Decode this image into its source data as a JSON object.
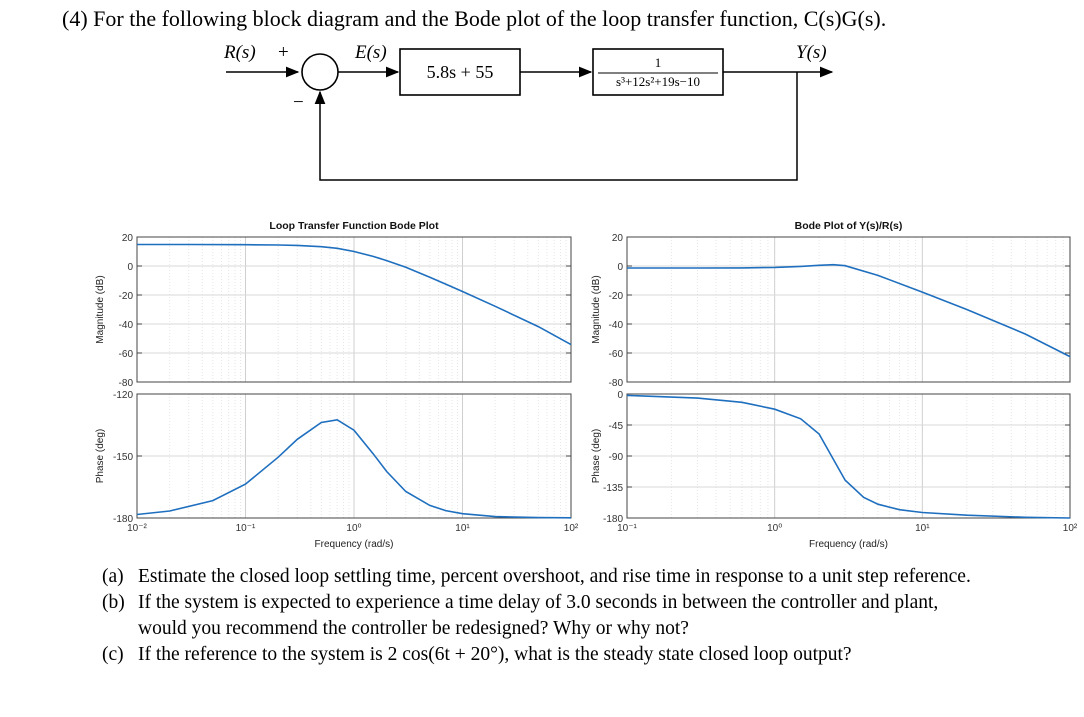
{
  "problem": {
    "title": "(4) For the following block diagram and the Bode plot of the loop transfer function, C(s)G(s)."
  },
  "block_diagram": {
    "input_label": "R(s)",
    "plus_sign": "+",
    "error_label": "E(s)",
    "minus_sign": "−",
    "output_label": "Y(s)",
    "controller": "5.8s + 55",
    "plant_numerator": "1",
    "plant_denominator": "s³+12s²+19s−10"
  },
  "chart_data": [
    {
      "type": "line",
      "title": "Loop Transfer Function Bode Plot",
      "panel": "magnitude",
      "xscale": "log",
      "xlim": [
        0.01,
        100
      ],
      "xticks": [
        "10⁻²",
        "10⁻¹",
        "10⁰",
        "10¹",
        "10²"
      ],
      "xlabel": "Frequency (rad/s)",
      "ylabel": "Magnitude (dB)",
      "ylim": [
        -80,
        20
      ],
      "yticks": [
        20,
        0,
        -20,
        -40,
        -60,
        -80
      ],
      "grid": true,
      "series": [
        {
          "name": "|C(jw)G(jw)|",
          "color": "#1f6fbf",
          "x": [
            0.01,
            0.03,
            0.1,
            0.2,
            0.3,
            0.5,
            0.7,
            1,
            1.5,
            2,
            3,
            5,
            7,
            10,
            20,
            50,
            100
          ],
          "y": [
            14.8,
            14.8,
            14.7,
            14.5,
            14.2,
            13.3,
            12.2,
            10.0,
            6.6,
            3.7,
            -0.9,
            -7.8,
            -12.5,
            -17.6,
            -27.8,
            -41.8,
            -54.2
          ]
        }
      ]
    },
    {
      "type": "line",
      "panel": "phase",
      "xscale": "log",
      "xlim": [
        0.01,
        100
      ],
      "ylabel": "Phase (deg)",
      "ylim": [
        -180,
        -120
      ],
      "yticks": [
        -120,
        -150,
        -180
      ],
      "grid": true,
      "series": [
        {
          "name": "phase C(jw)G(jw)",
          "color": "#1f6fbf",
          "x": [
            0.01,
            0.02,
            0.05,
            0.1,
            0.2,
            0.3,
            0.5,
            0.7,
            1,
            1.5,
            2,
            3,
            5,
            7,
            10,
            20,
            50,
            100
          ],
          "y": [
            -178.3,
            -176.6,
            -171.6,
            -163.6,
            -150.6,
            -141.9,
            -133.8,
            -132.5,
            -137.5,
            -148.9,
            -157.5,
            -167.2,
            -173.9,
            -176.4,
            -177.9,
            -179.3,
            -179.8,
            -179.9
          ]
        }
      ]
    },
    {
      "type": "line",
      "title": "Bode Plot of Y(s)/R(s)",
      "panel": "magnitude",
      "xscale": "log",
      "xlim": [
        0.1,
        100
      ],
      "xticks": [
        "10⁻¹",
        "10⁰",
        "10¹",
        "10²"
      ],
      "xlabel": "Frequency (rad/s)",
      "ylabel": "Magnitude (dB)",
      "ylim": [
        -80,
        20
      ],
      "yticks": [
        20,
        0,
        -20,
        -40,
        -60,
        -80
      ],
      "grid": true,
      "series": [
        {
          "name": "|Y/R|",
          "color": "#1f6fbf",
          "x": [
            0.1,
            0.3,
            0.6,
            1,
            1.5,
            2,
            2.5,
            3,
            5,
            10,
            20,
            50,
            100
          ],
          "y": [
            -1.4,
            -1.4,
            -1.3,
            -1.0,
            -0.3,
            0.5,
            0.9,
            0.2,
            -6.5,
            -18.0,
            -30.0,
            -47.0,
            -62.5
          ]
        }
      ]
    },
    {
      "type": "line",
      "panel": "phase",
      "xscale": "log",
      "xlim": [
        0.1,
        100
      ],
      "ylabel": "Phase (deg)",
      "ylim": [
        -180,
        0
      ],
      "yticks": [
        0,
        -45,
        -90,
        -135,
        -180
      ],
      "grid": true,
      "series": [
        {
          "name": "phase Y/R",
          "color": "#1f6fbf",
          "x": [
            0.1,
            0.3,
            0.6,
            1,
            1.5,
            2,
            2.5,
            3,
            4,
            5,
            7,
            10,
            20,
            50,
            100
          ],
          "y": [
            -2,
            -6,
            -12,
            -22,
            -36,
            -58,
            -95,
            -125,
            -150,
            -160,
            -168,
            -172,
            -176,
            -179,
            -180
          ]
        }
      ]
    }
  ],
  "questions": [
    {
      "label": "(a)",
      "text": "Estimate the closed loop settling time, percent overshoot, and rise time in response to a unit step reference."
    },
    {
      "label": "(b)",
      "text": "If the system is expected to experience a time delay of 3.0 seconds in between the controller and plant, would you recommend the controller be redesigned? Why or why not?"
    },
    {
      "label": "(c)",
      "text": "If the reference to the system is 2 cos(6t + 20°), what is the steady state closed loop output?"
    }
  ]
}
